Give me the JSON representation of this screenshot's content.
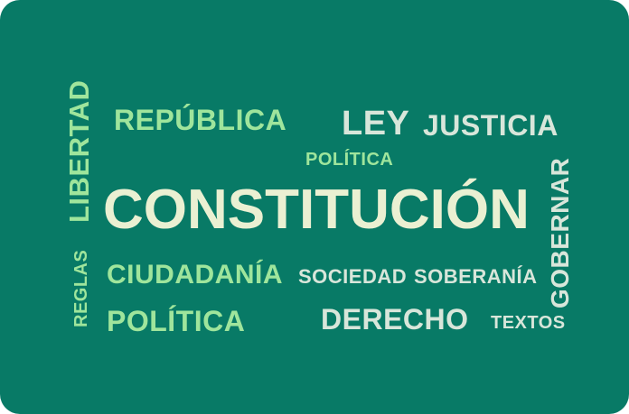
{
  "words": {
    "constitucion": "CONSTITUCIÓN",
    "republica": "REPÚBLICA",
    "ley": "LEY",
    "justicia": "JUSTICIA",
    "politica_small": "POLÍTICA",
    "libertad": "LIBERTAD",
    "ciudadania": "CIUDADANÍA",
    "sociedad": "SOCIEDAD",
    "soberania": "SOBERANÍA",
    "gobernar": "GOBERNAR",
    "reglas": "REGLAS",
    "politica": "POLÍTICA",
    "derecho": "DERECHO",
    "textos": "TEXTOS"
  },
  "colors": {
    "background": "#087a66",
    "green": "#9fe59c",
    "cream": "#eaf0d2",
    "pale": "#d8e6da"
  }
}
